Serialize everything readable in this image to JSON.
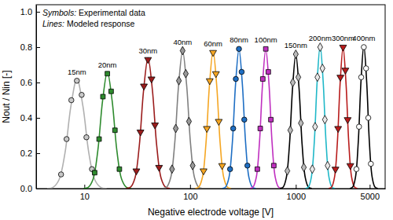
{
  "chart_data": {
    "type": "scatter",
    "xlabel": "Negative electrode voltage [V]",
    "ylabel": "Nout / Nin [-]",
    "annotations": [
      "Symbols: Experimental data",
      "Lines: Modeled response"
    ],
    "log": "x",
    "grid": false,
    "xlim": [
      3.5,
      7000
    ],
    "xticks": [
      10,
      100,
      1000,
      5000
    ],
    "ylim": [
      0,
      1.04
    ],
    "yticks": [
      {
        "value": 0,
        "label": "0.0"
      },
      0.2,
      0.4,
      0.6,
      0.8,
      {
        "value": 1,
        "label": "1.0"
      }
    ],
    "series": [
      {
        "name": "15nm",
        "type": "scatter",
        "marker": "circle",
        "color": "#c8c8c8",
        "x": [
          6.02,
          6.79,
          7.53,
          8.5,
          9.43,
          10.46,
          11.8
        ],
        "values": [
          0.08,
          0.28,
          0.5,
          0.61,
          0.53,
          0.29,
          0.11
        ]
      },
      {
        "type": "line",
        "line_style": "solid",
        "color": "#b0b0b0",
        "x": [
          4.45,
          5.06,
          5.76,
          6.56,
          7.47,
          8.5,
          9.68,
          11.02,
          12.54,
          14.27,
          16.24
        ],
        "values": [
          0.001,
          0.007,
          0.05,
          0.202,
          0.468,
          0.62,
          0.468,
          0.202,
          0.05,
          0.007,
          0.001
        ]
      },
      {
        "name": "20nm",
        "type": "scatter",
        "marker": "square",
        "color": "#2e8b2e",
        "x": [
          12.52,
          13.79,
          14.98,
          16.5,
          17.92,
          19.47,
          21.45
        ],
        "values": [
          0.09,
          0.28,
          0.52,
          0.65,
          0.55,
          0.33,
          0.11
        ]
      },
      {
        "type": "line",
        "line_style": "solid",
        "color": "#2e8b2e",
        "x": [
          9.83,
          10.9,
          12.09,
          13.41,
          14.88,
          16.5,
          18.3,
          20.3,
          22.52,
          24.98,
          27.7
        ],
        "values": [
          0.001,
          0.007,
          0.053,
          0.215,
          0.498,
          0.66,
          0.498,
          0.215,
          0.053,
          0.007,
          0.001
        ]
      },
      {
        "name": "30nm",
        "type": "scatter",
        "marker": "triangle-down",
        "color": "#9b1c1c",
        "x": [
          31.04,
          33.93,
          36.6,
          40,
          43.16,
          46.56,
          50.87
        ],
        "values": [
          0.1,
          0.32,
          0.58,
          0.73,
          0.62,
          0.36,
          0.12
        ]
      },
      {
        "type": "line",
        "line_style": "solid",
        "color": "#9b1c1c",
        "x": [
          24.87,
          27.35,
          30.08,
          33.07,
          36.37,
          40,
          43.99,
          48.38,
          53.2,
          58.51,
          64.34
        ],
        "values": [
          0.001,
          0.008,
          0.059,
          0.241,
          0.559,
          0.74,
          0.559,
          0.241,
          0.059,
          0.008,
          0.001
        ]
      },
      {
        "name": "40nm",
        "type": "scatter",
        "marker": "diamond",
        "color": "#999999",
        "x": [
          67.5,
          73.2,
          78.4,
          85,
          91.1,
          97.6,
          105.8
        ],
        "values": [
          0.11,
          0.34,
          0.61,
          0.78,
          0.65,
          0.38,
          0.13
        ]
      },
      {
        "type": "line",
        "line_style": "solid",
        "color": "#808080",
        "x": [
          55.2,
          60.19,
          65.61,
          71.52,
          77.98,
          85,
          92.66,
          101.0,
          110.1,
          120.1,
          130.9
        ],
        "values": [
          0.001,
          0.009,
          0.062,
          0.254,
          0.589,
          0.78,
          0.589,
          0.254,
          0.062,
          0.009,
          0.001
        ]
      },
      {
        "name": "60nm",
        "type": "scatter",
        "marker": "triangle-down",
        "color": "#f5a623",
        "x": [
          134.1,
          144.2,
          153.4,
          165,
          175.6,
          186.8,
          201.0
        ],
        "values": [
          0.1,
          0.34,
          0.61,
          0.77,
          0.65,
          0.38,
          0.13
        ]
      },
      {
        "type": "line",
        "line_style": "solid",
        "color": "#f5a623",
        "x": [
          111.9,
          121.0,
          130.7,
          141.3,
          152.7,
          165,
          178.3,
          192.7,
          208.3,
          225.1,
          243.2
        ],
        "values": [
          0.001,
          0.009,
          0.062,
          0.254,
          0.589,
          0.78,
          0.589,
          0.254,
          0.062,
          0.009,
          0.001
        ]
      },
      {
        "name": "80nm",
        "type": "scatter",
        "marker": "circle",
        "color": "#1f6fc4",
        "x": [
          239.0,
          255.8,
          270.8,
          290,
          307.4,
          325.7,
          348.6
        ],
        "values": [
          0.11,
          0.34,
          0.62,
          0.79,
          0.66,
          0.39,
          0.13
        ]
      },
      {
        "type": "line",
        "line_style": "solid",
        "color": "#1f6fc4",
        "x": [
          201.8,
          217.0,
          233.3,
          250.9,
          269.7,
          290,
          311.8,
          335.3,
          360.5,
          387.6,
          416.8
        ],
        "values": [
          0.001,
          0.009,
          0.063,
          0.257,
          0.596,
          0.79,
          0.596,
          0.257,
          0.063,
          0.009,
          0.001
        ]
      },
      {
        "name": "100nm",
        "type": "scatter",
        "marker": "square",
        "color": "#c030c0",
        "x": [
          432.6,
          461.2,
          487.2,
          520,
          549.6,
          580.8,
          619.3
        ],
        "values": [
          0.11,
          0.34,
          0.62,
          0.79,
          0.66,
          0.39,
          0.13
        ]
      },
      {
        "type": "line",
        "line_style": "solid",
        "color": "#c030c0",
        "x": [
          368.1,
          394.5,
          422.7,
          452.9,
          485.3,
          520,
          557.1,
          597.0,
          639.7,
          685.5,
          734.6
        ],
        "values": [
          0.001,
          0.009,
          0.063,
          0.257,
          0.596,
          0.79,
          0.596,
          0.257,
          0.063,
          0.009,
          0.001
        ]
      },
      {
        "name": "150nm",
        "type": "scatter",
        "marker": "diamond",
        "color": "#bbbbbb",
        "x": [
          832,
          887,
          937,
          1000,
          1057,
          1117,
          1191
        ],
        "values": [
          0.1,
          0.33,
          0.6,
          0.76,
          0.63,
          0.37,
          0.12
        ]
      },
      {
        "type": "line",
        "line_style": "solid",
        "color": "#000000",
        "x": [
          707.9,
          758.6,
          812.8,
          871.0,
          933.3,
          1000,
          1071.5,
          1148.2,
          1230.3,
          1318.3,
          1412.5
        ],
        "values": [
          0.001,
          0.008,
          0.061,
          0.247,
          0.574,
          0.76,
          0.574,
          0.247,
          0.061,
          0.008,
          0.001
        ]
      },
      {
        "name": "200nm",
        "type": "scatter",
        "marker": "diamond",
        "color": "#e8e8e8",
        "x": [
          1433,
          1522,
          1601,
          1700,
          1788,
          1884,
          1999
        ],
        "values": [
          0.11,
          0.35,
          0.63,
          0.8,
          0.68,
          0.39,
          0.13
        ]
      },
      {
        "type": "line",
        "line_style": "solid",
        "color": "#20b8c8",
        "x": [
          1234.9,
          1316.5,
          1403.4,
          1496.0,
          1594.8,
          1700,
          1812.2,
          1931.9,
          2059.4,
          2195.4,
          2340.4
        ],
        "values": [
          0.001,
          0.009,
          0.065,
          0.263,
          0.612,
          0.81,
          0.612,
          0.263,
          0.065,
          0.009,
          0.001
        ]
      },
      {
        "name": "300nm",
        "type": "scatter",
        "marker": "triangle-down",
        "color": "#b81c1c",
        "x": [
          2372,
          2514,
          2643,
          2800,
          2943,
          3094,
          3279
        ],
        "values": [
          0.11,
          0.34,
          0.63,
          0.8,
          0.67,
          0.39,
          0.13
        ]
      },
      {
        "type": "line",
        "line_style": "solid",
        "color": "#b81c1c",
        "x": [
          2051.8,
          2183.4,
          2323.7,
          2472.7,
          2631.2,
          2800,
          2979.5,
          3170.7,
          3374.0,
          3590.4,
          3820.9
        ],
        "values": [
          0.001,
          0.009,
          0.064,
          0.26,
          0.604,
          0.8,
          0.604,
          0.26,
          0.064,
          0.009,
          0.001
        ]
      },
      {
        "name": "400nm",
        "type": "scatter",
        "marker": "circle",
        "color": "#ffffff",
        "x": [
          3744,
          3964,
          4158,
          4400,
          4620,
          4849,
          5130
        ],
        "values": [
          0.11,
          0.35,
          0.63,
          0.8,
          0.68,
          0.4,
          0.14
        ]
      },
      {
        "type": "line",
        "line_style": "solid",
        "color": "#000000",
        "x": [
          3252.5,
          3454.9,
          3670.5,
          3898.8,
          4142.2,
          4400,
          4674.1,
          4965.4,
          5274.7,
          5603.4,
          5952.8
        ],
        "values": [
          0.001,
          0.009,
          0.065,
          0.263,
          0.612,
          0.81,
          0.612,
          0.263,
          0.065,
          0.009,
          0.001
        ]
      }
    ]
  }
}
